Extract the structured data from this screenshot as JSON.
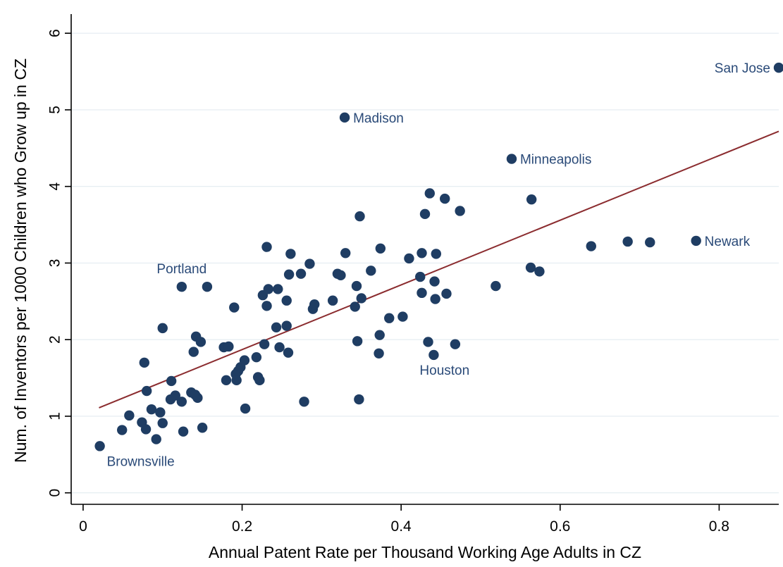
{
  "chart_data": {
    "type": "scatter",
    "xlabel": "Annual Patent Rate per Thousand Working Age Adults in CZ",
    "ylabel": "Num. of Inventors per 1000 Children who Grow up in CZ",
    "xlim": [
      -0.015,
      0.875
    ],
    "ylim": [
      -0.15,
      6.25
    ],
    "x_ticks": [
      "0",
      "0.2",
      "0.4",
      "0.6",
      "0.8"
    ],
    "y_ticks": [
      "0",
      "1",
      "2",
      "3",
      "4",
      "5",
      "6"
    ],
    "grid": "horizontal",
    "colors": {
      "points": "#1f3d63",
      "fit_line": "#8b2c2f",
      "labels": "#2a4a78",
      "grid": "#e3ebf1"
    },
    "fit_line": {
      "x": [
        0.02,
        0.875
      ],
      "y": [
        1.11,
        4.72
      ]
    },
    "labeled_points": [
      {
        "name": "San Jose",
        "x": 0.875,
        "y": 5.55,
        "side": "left"
      },
      {
        "name": "Madison",
        "x": 0.329,
        "y": 4.9,
        "side": "right"
      },
      {
        "name": "Minneapolis",
        "x": 0.539,
        "y": 4.36,
        "side": "right"
      },
      {
        "name": "Newark",
        "x": 0.771,
        "y": 3.29,
        "side": "right"
      },
      {
        "name": "Portland",
        "x": 0.124,
        "y": 2.69,
        "side": "above"
      },
      {
        "name": "Houston",
        "x": 0.441,
        "y": 1.8,
        "side": "below"
      },
      {
        "name": "Brownsville",
        "x": 0.021,
        "y": 0.61,
        "side": "below"
      }
    ],
    "points": [
      [
        0.021,
        0.61
      ],
      [
        0.049,
        0.82
      ],
      [
        0.058,
        1.01
      ],
      [
        0.074,
        0.92
      ],
      [
        0.077,
        1.7
      ],
      [
        0.079,
        0.83
      ],
      [
        0.08,
        1.33
      ],
      [
        0.086,
        1.09
      ],
      [
        0.092,
        0.7
      ],
      [
        0.097,
        1.05
      ],
      [
        0.1,
        0.91
      ],
      [
        0.1,
        2.15
      ],
      [
        0.11,
        1.22
      ],
      [
        0.111,
        1.46
      ],
      [
        0.116,
        1.27
      ],
      [
        0.124,
        2.69
      ],
      [
        0.124,
        1.19
      ],
      [
        0.126,
        0.8
      ],
      [
        0.136,
        1.31
      ],
      [
        0.139,
        1.84
      ],
      [
        0.141,
        1.28
      ],
      [
        0.142,
        2.04
      ],
      [
        0.144,
        1.24
      ],
      [
        0.148,
        1.97
      ],
      [
        0.15,
        0.85
      ],
      [
        0.156,
        2.69
      ],
      [
        0.177,
        1.9
      ],
      [
        0.18,
        1.47
      ],
      [
        0.183,
        1.91
      ],
      [
        0.19,
        2.42
      ],
      [
        0.192,
        1.55
      ],
      [
        0.193,
        1.47
      ],
      [
        0.195,
        1.59
      ],
      [
        0.198,
        1.64
      ],
      [
        0.203,
        1.73
      ],
      [
        0.204,
        1.1
      ],
      [
        0.218,
        1.77
      ],
      [
        0.22,
        1.51
      ],
      [
        0.222,
        1.47
      ],
      [
        0.226,
        2.58
      ],
      [
        0.228,
        1.94
      ],
      [
        0.231,
        2.44
      ],
      [
        0.231,
        3.21
      ],
      [
        0.233,
        2.66
      ],
      [
        0.243,
        2.16
      ],
      [
        0.245,
        2.66
      ],
      [
        0.247,
        1.9
      ],
      [
        0.256,
        2.51
      ],
      [
        0.256,
        2.18
      ],
      [
        0.258,
        1.83
      ],
      [
        0.259,
        2.85
      ],
      [
        0.261,
        3.12
      ],
      [
        0.274,
        2.86
      ],
      [
        0.278,
        1.19
      ],
      [
        0.285,
        2.99
      ],
      [
        0.289,
        2.4
      ],
      [
        0.291,
        2.46
      ],
      [
        0.314,
        2.51
      ],
      [
        0.32,
        2.86
      ],
      [
        0.324,
        2.84
      ],
      [
        0.33,
        3.13
      ],
      [
        0.329,
        4.9
      ],
      [
        0.342,
        2.43
      ],
      [
        0.344,
        2.7
      ],
      [
        0.345,
        1.98
      ],
      [
        0.347,
        1.22
      ],
      [
        0.348,
        3.61
      ],
      [
        0.35,
        2.54
      ],
      [
        0.362,
        2.9
      ],
      [
        0.372,
        1.82
      ],
      [
        0.373,
        2.06
      ],
      [
        0.374,
        3.19
      ],
      [
        0.385,
        2.28
      ],
      [
        0.402,
        2.3
      ],
      [
        0.41,
        3.06
      ],
      [
        0.424,
        2.82
      ],
      [
        0.426,
        3.13
      ],
      [
        0.426,
        2.61
      ],
      [
        0.43,
        3.64
      ],
      [
        0.434,
        1.97
      ],
      [
        0.436,
        3.91
      ],
      [
        0.441,
        1.8
      ],
      [
        0.442,
        2.76
      ],
      [
        0.443,
        2.53
      ],
      [
        0.444,
        3.12
      ],
      [
        0.455,
        3.84
      ],
      [
        0.457,
        2.6
      ],
      [
        0.468,
        1.94
      ],
      [
        0.474,
        3.68
      ],
      [
        0.519,
        2.7
      ],
      [
        0.539,
        4.36
      ],
      [
        0.563,
        2.94
      ],
      [
        0.564,
        3.83
      ],
      [
        0.574,
        2.89
      ],
      [
        0.639,
        3.22
      ],
      [
        0.685,
        3.28
      ],
      [
        0.713,
        3.27
      ],
      [
        0.771,
        3.29
      ],
      [
        0.875,
        5.55
      ]
    ]
  }
}
